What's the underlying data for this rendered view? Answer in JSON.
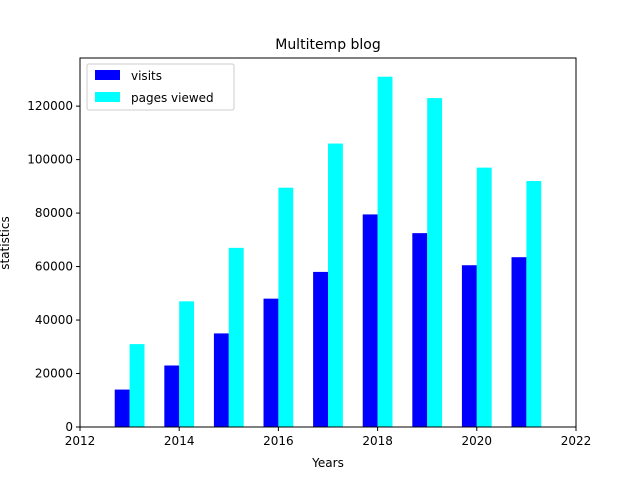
{
  "chart_data": {
    "type": "bar",
    "title": "Multitemp blog",
    "xlabel": "Years",
    "ylabel": "statistics",
    "x": [
      2013,
      2014,
      2015,
      2016,
      2017,
      2018,
      2019,
      2020,
      2021
    ],
    "series": [
      {
        "name": "visits",
        "color": "#0000ff",
        "values": [
          14000,
          23000,
          35000,
          48000,
          58000,
          79500,
          72500,
          60500,
          63500
        ]
      },
      {
        "name": "pages viewed",
        "color": "#00ffff",
        "values": [
          31000,
          47000,
          67000,
          89500,
          106000,
          131000,
          123000,
          97000,
          92000
        ]
      }
    ],
    "xlim": [
      2012,
      2022
    ],
    "ylim": [
      0,
      138000
    ],
    "xticks": [
      "2012",
      "2014",
      "2016",
      "2018",
      "2020",
      "2022"
    ],
    "yticks": [
      "0",
      "20000",
      "40000",
      "60000",
      "80000",
      "100000",
      "120000"
    ],
    "grid": false,
    "legend_position": "top-left"
  }
}
